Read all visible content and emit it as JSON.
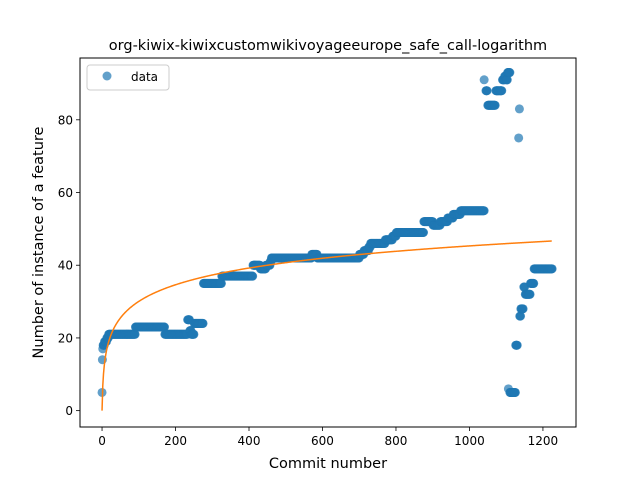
{
  "chart_data": {
    "type": "scatter",
    "title": "org-kiwix-kiwixcustomwikivoyageeurope_safe_call-logarithm",
    "xlabel": "Commit number",
    "ylabel": "Number of instance of a feature",
    "xlim": [
      -60,
      1290
    ],
    "ylim": [
      -4.5,
      97
    ],
    "xticks": [
      0,
      200,
      400,
      600,
      800,
      1000,
      1200
    ],
    "yticks": [
      0,
      20,
      40,
      60,
      80
    ],
    "grid": false,
    "legend": {
      "location": "top-left",
      "entries": [
        "data"
      ]
    },
    "colors": {
      "data": "#1f77b4",
      "fit": "#ff7f0e"
    },
    "series": [
      {
        "name": "data",
        "kind": "scatter",
        "steps": [
          [
            0,
            0,
            5
          ],
          [
            1,
            1,
            14
          ],
          [
            2,
            2,
            17
          ],
          [
            3,
            6,
            18
          ],
          [
            7,
            12,
            19
          ],
          [
            13,
            17,
            20
          ],
          [
            18,
            90,
            21
          ],
          [
            91,
            170,
            23
          ],
          [
            171,
            232,
            21
          ],
          [
            233,
            238,
            25
          ],
          [
            239,
            242,
            22
          ],
          [
            243,
            250,
            21
          ],
          [
            251,
            275,
            24
          ],
          [
            276,
            325,
            35
          ],
          [
            326,
            410,
            37
          ],
          [
            411,
            430,
            40
          ],
          [
            431,
            445,
            39
          ],
          [
            446,
            457,
            40
          ],
          [
            458,
            460,
            41
          ],
          [
            461,
            570,
            42
          ],
          [
            571,
            585,
            43
          ],
          [
            586,
            700,
            42
          ],
          [
            701,
            712,
            43
          ],
          [
            713,
            725,
            44
          ],
          [
            726,
            730,
            45
          ],
          [
            731,
            770,
            46
          ],
          [
            771,
            790,
            47
          ],
          [
            791,
            800,
            48
          ],
          [
            801,
            875,
            49
          ],
          [
            876,
            900,
            52
          ],
          [
            901,
            920,
            51
          ],
          [
            921,
            940,
            52
          ],
          [
            941,
            955,
            53
          ],
          [
            956,
            975,
            54
          ],
          [
            976,
            990,
            55
          ],
          [
            991,
            1040,
            55
          ],
          [
            1040,
            1040,
            91
          ],
          [
            1045,
            1048,
            88
          ],
          [
            1050,
            1070,
            84
          ],
          [
            1072,
            1080,
            88
          ],
          [
            1082,
            1088,
            88
          ],
          [
            1090,
            1095,
            91
          ],
          [
            1096,
            1100,
            92
          ],
          [
            1100,
            1103,
            91
          ],
          [
            1104,
            1110,
            93
          ],
          [
            1106,
            1106,
            6
          ],
          [
            1110,
            1125,
            5
          ],
          [
            1126,
            1130,
            18
          ],
          [
            1134,
            1134,
            75
          ],
          [
            1136,
            1136,
            83
          ],
          [
            1137,
            1139,
            26
          ],
          [
            1140,
            1146,
            28
          ],
          [
            1148,
            1150,
            34
          ],
          [
            1152,
            1165,
            32
          ],
          [
            1166,
            1175,
            35
          ],
          [
            1176,
            1225,
            39
          ]
        ]
      },
      {
        "name": "",
        "kind": "line",
        "model": "logarithmic",
        "a": 6.66,
        "b": 0.9,
        "x_range": [
          0,
          1225
        ]
      }
    ]
  }
}
